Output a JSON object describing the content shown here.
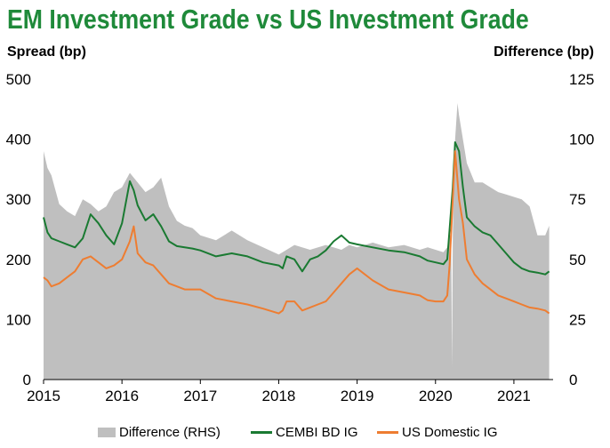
{
  "chart_data": {
    "type": "line",
    "title": "EM Investment Grade vs US Investment Grade",
    "ylabel_left": "Spread (bp)",
    "ylabel_right": "Difference (bp)",
    "ylim_left": [
      0,
      500
    ],
    "ylim_right": [
      0,
      125
    ],
    "yticks_left": [
      0,
      100,
      200,
      300,
      400,
      500
    ],
    "yticks_right": [
      0,
      25,
      50,
      75,
      100,
      125
    ],
    "xlim": [
      2015,
      2021.5
    ],
    "xticks": [
      2015,
      2016,
      2017,
      2018,
      2019,
      2020,
      2021
    ],
    "xtick_labels": [
      "2015",
      "2016",
      "2017",
      "2018",
      "2019",
      "2020",
      "2021"
    ],
    "series": [
      {
        "name": "Difference (RHS)",
        "kind": "area",
        "axis": "right",
        "color": "#bfbfbf",
        "x": [
          2015.0,
          2015.05,
          2015.1,
          2015.2,
          2015.3,
          2015.4,
          2015.5,
          2015.6,
          2015.7,
          2015.8,
          2015.9,
          2016.0,
          2016.1,
          2016.2,
          2016.3,
          2016.4,
          2016.5,
          2016.6,
          2016.7,
          2016.8,
          2016.9,
          2017.0,
          2017.2,
          2017.4,
          2017.6,
          2017.8,
          2018.0,
          2018.2,
          2018.4,
          2018.6,
          2018.8,
          2018.9,
          2019.0,
          2019.2,
          2019.4,
          2019.6,
          2019.8,
          2019.9,
          2020.0,
          2020.1,
          2020.15,
          2020.18,
          2020.2,
          2020.21,
          2020.22,
          2020.25,
          2020.28,
          2020.3,
          2020.35,
          2020.4,
          2020.5,
          2020.6,
          2020.7,
          2020.8,
          2020.9,
          2021.0,
          2021.1,
          2021.2,
          2021.3,
          2021.4,
          2021.45
        ],
        "values": [
          95,
          88,
          85,
          73,
          70,
          68,
          75,
          73,
          70,
          72,
          78,
          80,
          86,
          82,
          78,
          80,
          84,
          72,
          66,
          64,
          63,
          60,
          58,
          62,
          58,
          55,
          52,
          56,
          54,
          56,
          54,
          56,
          55,
          57,
          55,
          56,
          54,
          55,
          54,
          53,
          55,
          60,
          60,
          5,
          60,
          100,
          115,
          110,
          100,
          90,
          82,
          82,
          80,
          78,
          77,
          76,
          75,
          72,
          60,
          60,
          64
        ]
      },
      {
        "name": "CEMBI BD IG",
        "kind": "line",
        "axis": "left",
        "color": "#1a7a32",
        "x": [
          2015.0,
          2015.05,
          2015.1,
          2015.2,
          2015.3,
          2015.4,
          2015.5,
          2015.6,
          2015.7,
          2015.8,
          2015.9,
          2016.0,
          2016.1,
          2016.15,
          2016.2,
          2016.3,
          2016.4,
          2016.5,
          2016.6,
          2016.7,
          2016.8,
          2016.9,
          2017.0,
          2017.2,
          2017.4,
          2017.6,
          2017.8,
          2018.0,
          2018.05,
          2018.1,
          2018.2,
          2018.3,
          2018.4,
          2018.5,
          2018.6,
          2018.7,
          2018.8,
          2018.9,
          2019.0,
          2019.2,
          2019.4,
          2019.6,
          2019.8,
          2019.9,
          2020.0,
          2020.1,
          2020.15,
          2020.18,
          2020.22,
          2020.25,
          2020.3,
          2020.35,
          2020.4,
          2020.5,
          2020.6,
          2020.7,
          2020.8,
          2020.9,
          2021.0,
          2021.1,
          2021.2,
          2021.3,
          2021.4,
          2021.45
        ],
        "values": [
          270,
          245,
          235,
          230,
          225,
          220,
          235,
          275,
          260,
          240,
          225,
          260,
          330,
          315,
          290,
          265,
          275,
          255,
          230,
          222,
          220,
          218,
          215,
          205,
          210,
          205,
          195,
          190,
          185,
          205,
          200,
          180,
          200,
          205,
          215,
          230,
          240,
          228,
          225,
          220,
          215,
          212,
          205,
          198,
          195,
          192,
          200,
          250,
          320,
          395,
          380,
          320,
          270,
          255,
          245,
          240,
          225,
          210,
          195,
          185,
          180,
          178,
          175,
          180
        ]
      },
      {
        "name": "US Domestic IG",
        "kind": "line",
        "axis": "left",
        "color": "#ee7d31",
        "x": [
          2015.0,
          2015.05,
          2015.1,
          2015.2,
          2015.3,
          2015.4,
          2015.5,
          2015.6,
          2015.7,
          2015.8,
          2015.9,
          2016.0,
          2016.1,
          2016.15,
          2016.2,
          2016.3,
          2016.4,
          2016.5,
          2016.6,
          2016.7,
          2016.8,
          2016.9,
          2017.0,
          2017.2,
          2017.4,
          2017.6,
          2017.8,
          2018.0,
          2018.05,
          2018.1,
          2018.2,
          2018.3,
          2018.4,
          2018.5,
          2018.6,
          2018.7,
          2018.8,
          2018.9,
          2019.0,
          2019.2,
          2019.4,
          2019.6,
          2019.8,
          2019.9,
          2020.0,
          2020.1,
          2020.15,
          2020.18,
          2020.22,
          2020.25,
          2020.3,
          2020.35,
          2020.4,
          2020.5,
          2020.6,
          2020.7,
          2020.8,
          2020.9,
          2021.0,
          2021.1,
          2021.2,
          2021.3,
          2021.4,
          2021.45
        ],
        "values": [
          170,
          165,
          155,
          160,
          170,
          180,
          200,
          205,
          195,
          185,
          190,
          200,
          230,
          255,
          210,
          195,
          190,
          175,
          160,
          155,
          150,
          150,
          150,
          135,
          130,
          125,
          118,
          110,
          115,
          130,
          130,
          115,
          120,
          125,
          130,
          145,
          160,
          175,
          185,
          165,
          150,
          145,
          140,
          132,
          130,
          130,
          140,
          190,
          300,
          380,
          300,
          260,
          200,
          175,
          160,
          150,
          140,
          135,
          130,
          125,
          120,
          118,
          115,
          110
        ]
      }
    ]
  }
}
